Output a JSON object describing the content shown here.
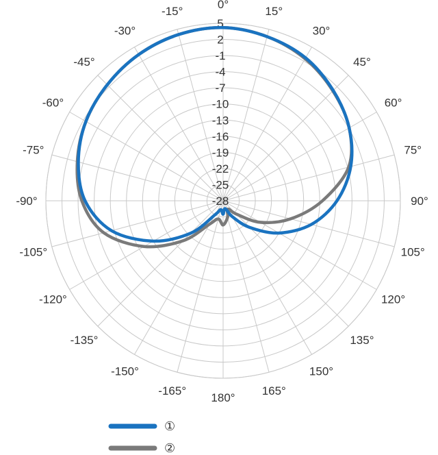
{
  "chart_data": {
    "type": "polar",
    "angle_unit": "degrees",
    "angle_zero": "top",
    "angle_labels": [
      "0°",
      "15°",
      "30°",
      "45°",
      "60°",
      "75°",
      "90°",
      "105°",
      "120°",
      "135°",
      "150°",
      "165°",
      "180°",
      "-165°",
      "-150°",
      "-135°",
      "-120°",
      "-105°",
      "-90°",
      "-75°",
      "-60°",
      "-45°",
      "-30°",
      "-15°"
    ],
    "radial_ticks": [
      5,
      2,
      -1,
      -4,
      -7,
      -10,
      -13,
      -16,
      -19,
      -22,
      -25,
      -28
    ],
    "radial_labels": [
      "5",
      "2",
      "-1",
      "-4",
      "-7",
      "-10",
      "-13",
      "-16",
      "-19",
      "-22",
      "-25",
      "-28"
    ],
    "rlim": [
      -28,
      5
    ],
    "grid": true,
    "legend_position": "bottom-left",
    "series": [
      {
        "name": "①",
        "color": "#1a73c0",
        "points": [
          {
            "angle": 0,
            "value": 4.2
          },
          {
            "angle": 15,
            "value": 3.6
          },
          {
            "angle": 30,
            "value": 2.7
          },
          {
            "angle": 45,
            "value": 1.0
          },
          {
            "angle": 60,
            "value": -0.9
          },
          {
            "angle": 75,
            "value": -3.4
          },
          {
            "angle": 90,
            "value": -6.8
          },
          {
            "angle": 105,
            "value": -11.0
          },
          {
            "angle": 120,
            "value": -16.0
          },
          {
            "angle": 135,
            "value": -21.0
          },
          {
            "angle": 150,
            "value": -24.6
          },
          {
            "angle": 165,
            "value": -26.5
          },
          {
            "angle": 180,
            "value": -25.5
          },
          {
            "angle": 195,
            "value": -26.3
          },
          {
            "angle": 210,
            "value": -25.0
          },
          {
            "angle": 225,
            "value": -19.5
          },
          {
            "angle": 240,
            "value": -13.0
          },
          {
            "angle": 255,
            "value": -6.5
          },
          {
            "angle": 270,
            "value": -2.3
          },
          {
            "angle": 285,
            "value": -0.1
          },
          {
            "angle": 300,
            "value": 1.5
          },
          {
            "angle": 315,
            "value": 2.5
          },
          {
            "angle": 330,
            "value": 3.4
          },
          {
            "angle": 345,
            "value": 4.0
          }
        ]
      },
      {
        "name": "②",
        "color": "#7a7a7a",
        "points": [
          {
            "angle": 0,
            "value": 4.2
          },
          {
            "angle": 15,
            "value": 3.6
          },
          {
            "angle": 30,
            "value": 2.5
          },
          {
            "angle": 45,
            "value": 0.9
          },
          {
            "angle": 60,
            "value": -0.9
          },
          {
            "angle": 75,
            "value": -3.8
          },
          {
            "angle": 90,
            "value": -9.5
          },
          {
            "angle": 105,
            "value": -15.0
          },
          {
            "angle": 120,
            "value": -20.0
          },
          {
            "angle": 135,
            "value": -24.5
          },
          {
            "angle": 150,
            "value": -26.2
          },
          {
            "angle": 165,
            "value": -24.8
          },
          {
            "angle": 180,
            "value": -23.5
          },
          {
            "angle": 195,
            "value": -24.5
          },
          {
            "angle": 210,
            "value": -23.0
          },
          {
            "angle": 225,
            "value": -17.5
          },
          {
            "angle": 240,
            "value": -11.0
          },
          {
            "angle": 255,
            "value": -5.0
          },
          {
            "angle": 270,
            "value": -1.7
          },
          {
            "angle": 285,
            "value": 0.1
          },
          {
            "angle": 300,
            "value": 1.5
          },
          {
            "angle": 315,
            "value": 2.5
          },
          {
            "angle": 330,
            "value": 3.4
          },
          {
            "angle": 345,
            "value": 4.0
          }
        ]
      }
    ]
  },
  "legend": {
    "items": [
      {
        "label": "①",
        "color": "#1a73c0"
      },
      {
        "label": "②",
        "color": "#7a7a7a"
      }
    ]
  }
}
